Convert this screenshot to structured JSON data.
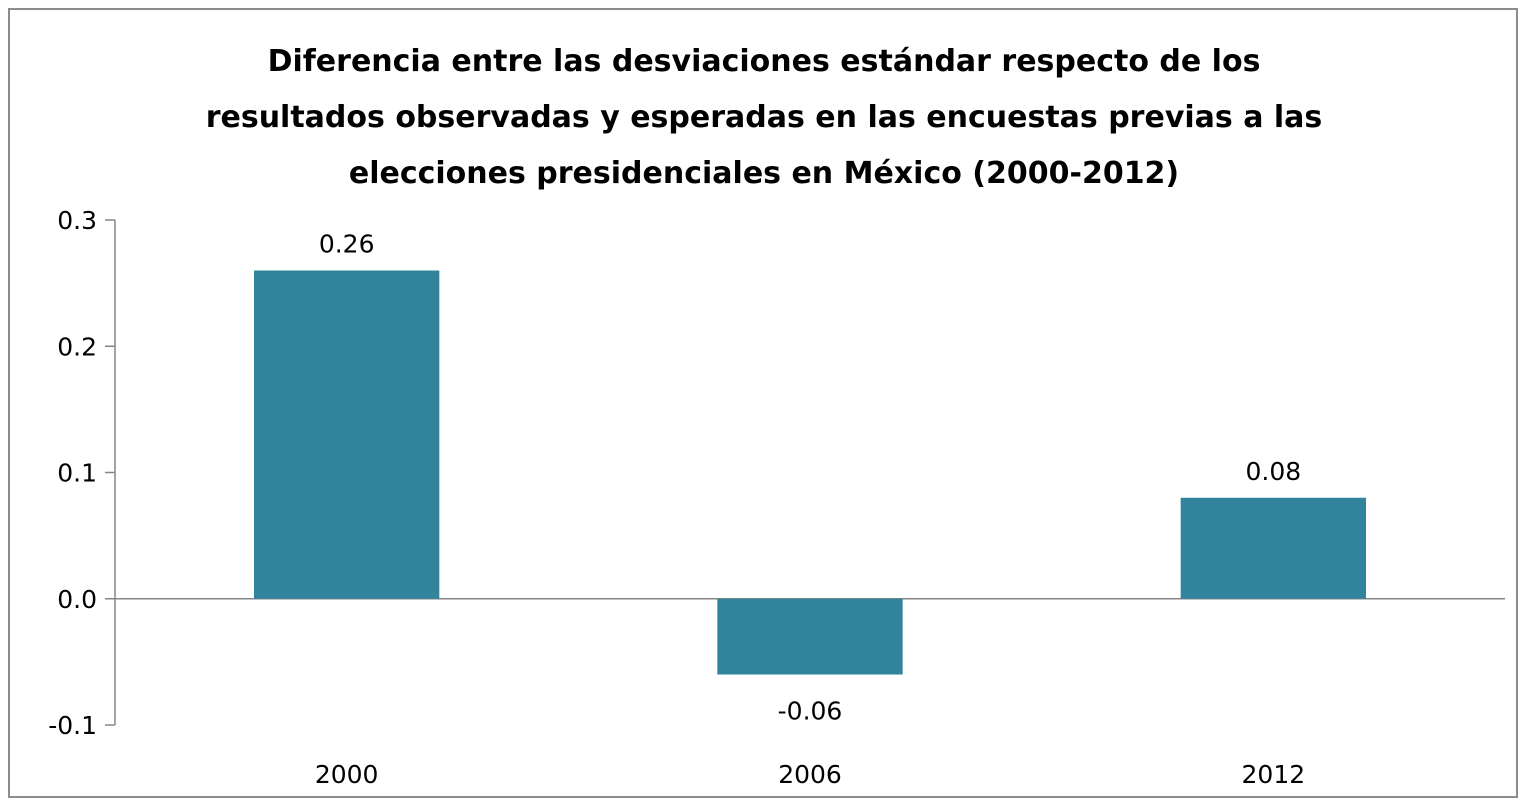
{
  "chart_data": {
    "type": "bar",
    "title_lines": [
      "Diferencia entre las desviaciones estándar respecto de los",
      "resultados observadas y esperadas en las encuestas previas a las",
      "elecciones presidenciales en México (2000-2012)"
    ],
    "categories": [
      "2000",
      "2006",
      "2012"
    ],
    "values": [
      0.26,
      -0.06,
      0.08
    ],
    "data_labels": [
      "0.26",
      "-0.06",
      "0.08"
    ],
    "ylim": [
      -0.1,
      0.3
    ],
    "yticks": [
      {
        "value": 0.3,
        "label": "0.3"
      },
      {
        "value": 0.2,
        "label": "0.2"
      },
      {
        "value": 0.1,
        "label": "0.1"
      },
      {
        "value": 0.0,
        "label": "0.0"
      },
      {
        "value": -0.1,
        "label": "-0.1"
      }
    ],
    "grid": false,
    "legend": "none",
    "bar_color": "#31849b",
    "axis_color": "#868686"
  }
}
